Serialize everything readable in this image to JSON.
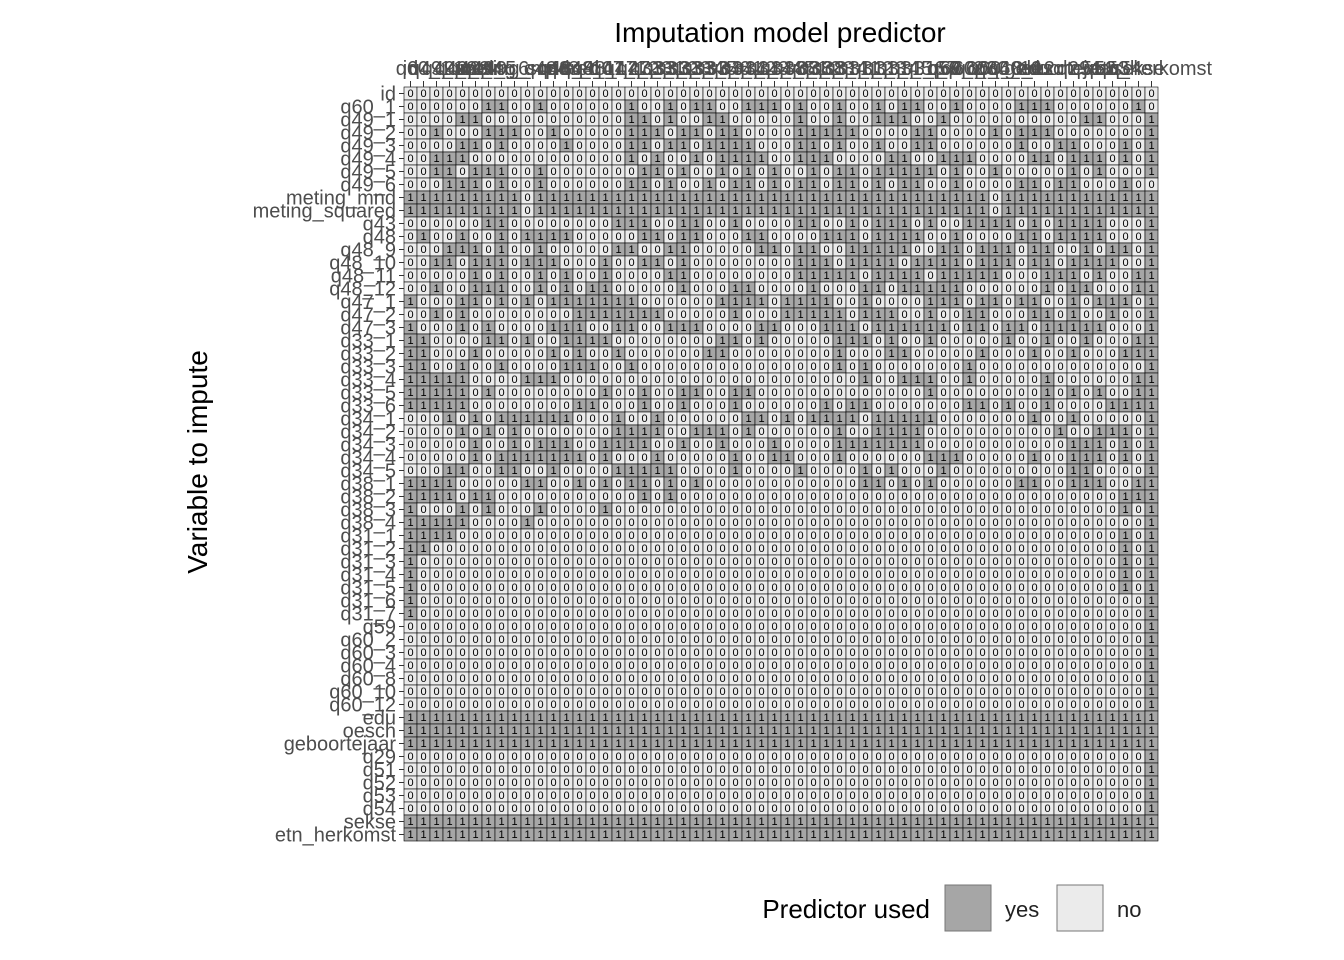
{
  "chart_data": {
    "type": "heatmap",
    "title": "Imputation model predictor",
    "xlabel": "Imputation model predictor",
    "ylabel": "Variable to impute",
    "variables": [
      "id",
      "q60_1",
      "q49_1",
      "q49_2",
      "q49_3",
      "q49_4",
      "q49_5",
      "q49_6",
      "meting_mnd",
      "meting_squared",
      "q43",
      "q48",
      "q48_9",
      "q48_10",
      "q48_11",
      "q48_12",
      "q47_1",
      "q47_2",
      "q47_3",
      "q33_1",
      "q33_2",
      "q33_3",
      "q33_4",
      "q33_5",
      "q33_6",
      "q34_1",
      "q34_2",
      "q34_3",
      "q34_4",
      "q34_5",
      "q38_1",
      "q38_2",
      "q38_3",
      "q38_4",
      "q31_1",
      "q31_2",
      "q31_3",
      "q31_4",
      "q31_5",
      "q31_6",
      "q31_7",
      "q59",
      "q60_2",
      "q60_3",
      "q60_4",
      "q60_8",
      "q60_10",
      "q60_12",
      "edu",
      "oesch",
      "geboortejaar",
      "q29",
      "q51",
      "q52",
      "q53",
      "q54",
      "sekse",
      "etn_herkomst"
    ],
    "value_labels": [
      "1 = yes",
      "0 = no"
    ],
    "cell_text": "0/1 per cell",
    "matrix": [
      "0000000000000000000000000000000000000000000000000000000000",
      "0000001100100000010010110011101001001011001000011100000010",
      "0000110000000000011010011000001001001110010000000000110001",
      "0010001110010000011101101100001111100001100001011100000001",
      "0000110100001000011011011110001101001001100000010011000101",
      "0011100000000000010100101111001110000110011100001101110101",
      "0011011100100000001101001010100101101111101001000001010001",
      "0001110100100000011010010110101101101011001000011011000100",
      "1111111110111111111111111111111111111111111110111111111111",
      "1111111110111111111111111111111111111111111110111111111111",
      "0000001100000000111001100100001100101110100111101011110001",
      "0100100101111000001101100011000011101111001000011011110001",
      "0001110100100000110011000001101100111110011011101100101101",
      "0011011101110001001101000000001110111101111011101101111001",
      "0000010100101001000011000000001111101111011111000111010011",
      "0010011100101011000001000110000100011011111000000101100011",
      "1000110101011111110000001111011110010000111011011001011101",
      "0010100000000111111100000100011111011100100110001101001001",
      "1000101000011100110011100001100011101111110110110111110001",
      "1100001101001111000000001101000001110100100000100100100011",
      "1100010000010100100000011000000001000110000010001001000111",
      "1100100100001110010000000000000001010000000100000000000001",
      "1111100001110000000000000000000000010011100100000100000011",
      "1111101000000001001001100110000000000000100000000101010011",
      "1111100000000110001001000100000010110000000110100100001111",
      "0001010111111000100100000011010111101111100000001001000001",
      "0000101010000000111100111010000001001111000000000010011101",
      "0000010010111001111001001000100001111111000000000001110101",
      "0000010111111101000100000100110001000000111000001001110101",
      "0001100110010000111110000100001000010100010000000001100001",
      "1111000001100101011010100000000000011010100000011001110011",
      "1111011000000000001010000000000000000000000000000000000111",
      "1000101000100001000000000000000000000000000000000000000101",
      "1111100001000000000000000000000000000000000000000000000001",
      "1111000000000000000000000000000000000000000000000000000101",
      "1100000000000000000000000000000000000000000000000000000101",
      "1000000000000000000000000000000000000000000000000000000101",
      "1000000000000000000000000000000000000000000000000000000101",
      "1000000000000000000000000000000000000000000000000000000101",
      "1000000000000000000000000000000000000000000000000000000001",
      "1000000000000000000000000000000000000000000000000000000001",
      "0000000000000000000000000000000000000000000000000000000001",
      "0000000000000000000000000000000000000000000000000000000001",
      "0000000000000000000000000000000000000000000000000000000001",
      "0000000000000000000000000000000000000000000000000000000001",
      "0000000000000000000000000000000000000000000000000000000001",
      "0000000000000000000000000000000000000000000000000000000001",
      "0000000000000000000000000000000000000000000000000000000001",
      "1111111111111111111111111111111111111111111111111111111111",
      "1111111111111111111111111111111111111111111111111111111111",
      "1111111111111111111111111111111111111111111111111111111111",
      "0000000000000000000000000000000000000000000000000000000001",
      "0000000000000000000000000000000000000000000000000000000001",
      "0000000000000000000000000000000000000000000000000000000001",
      "0000000000000000000000000000000000000000000000000000000001",
      "0000000000000000000000000000000000000000000000000000000001",
      "1111111111111111111111111111111111111111111111111111111111",
      "1111111111111111111111111111111111111111111111111111111111"
    ],
    "legend": {
      "title": "Predictor used",
      "placement": "bottom-right",
      "items": [
        {
          "label": "yes",
          "color": "#a6a6a6"
        },
        {
          "label": "no",
          "color": "#ebebeb"
        }
      ]
    },
    "colors": {
      "yes": "#a6a6a6",
      "no": "#ebebeb",
      "grid": "#000000",
      "axis_text": "#4d4d4d",
      "title_text": "#000000"
    }
  }
}
